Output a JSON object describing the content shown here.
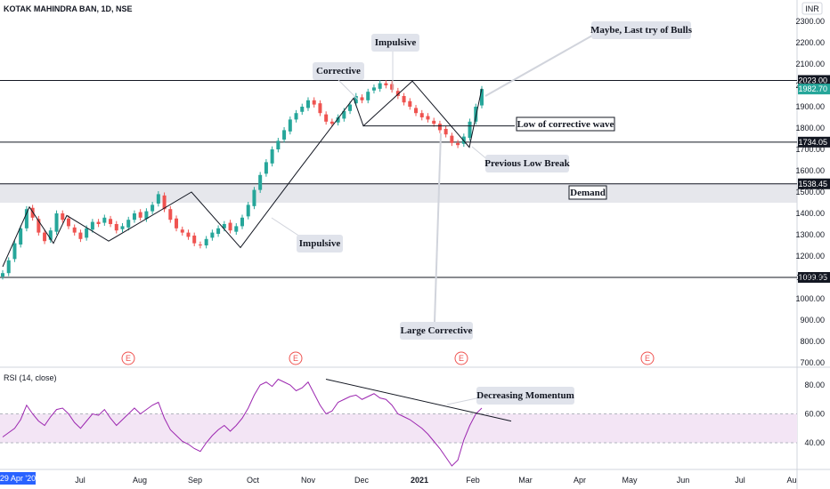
{
  "header": {
    "symbol": "KOTAK MAHINDRA BAN, 1D, NSE",
    "currency": "INR"
  },
  "chart_data": [
    {
      "type": "candlestick",
      "title": "KOTAK MAHINDRA BAN, 1D, NSE",
      "ylim": [
        700,
        2300
      ],
      "y_ticks": [
        "2300.00",
        "2200.00",
        "2100.00",
        "2000.00",
        "1900.00",
        "1800.00",
        "1700.00",
        "1600.00",
        "1500.00",
        "1400.00",
        "1300.00",
        "1200.00",
        "1100.00",
        "1000.00",
        "900.00",
        "800.00",
        "700.00"
      ],
      "x_ticks": [
        "29 Apr '20",
        "Jul",
        "Aug",
        "Sep",
        "Oct",
        "Nov",
        "Dec",
        "2021",
        "Feb",
        "Mar",
        "Apr",
        "May",
        "Jun",
        "Jul",
        "Au"
      ],
      "levels": [
        {
          "value": 2023.0,
          "label": "2023.00"
        },
        {
          "value": 1734.05,
          "label": "1734.05"
        },
        {
          "value": 1538.45,
          "label": "1538.45"
        },
        {
          "value": 1099.95,
          "label": "1099.95"
        }
      ],
      "last_price": {
        "value": 1982.7,
        "label": "1982.70",
        "color": "#26a69a"
      },
      "demand_zone": [
        1450,
        1538.45
      ],
      "up_color": "#26a69a",
      "down_color": "#ef5350",
      "wave_path": [
        1150,
        1430,
        1260,
        1390,
        1270,
        1500,
        1240,
        1590,
        1940,
        1810,
        2020,
        1710,
        1985
      ],
      "close_path": [
        1120,
        1180,
        1260,
        1330,
        1420,
        1380,
        1310,
        1270,
        1320,
        1400,
        1370,
        1340,
        1310,
        1280,
        1330,
        1360,
        1350,
        1380,
        1350,
        1320,
        1340,
        1370,
        1400,
        1380,
        1410,
        1440,
        1490,
        1420,
        1370,
        1330,
        1310,
        1290,
        1260,
        1250,
        1280,
        1310,
        1330,
        1350,
        1320,
        1340,
        1380,
        1440,
        1510,
        1580,
        1640,
        1700,
        1740,
        1790,
        1840,
        1870,
        1900,
        1930,
        1910,
        1870,
        1830,
        1820,
        1850,
        1880,
        1910,
        1950,
        1930,
        1970,
        1990,
        2010,
        2000,
        1980,
        1950,
        1920,
        1900,
        1870,
        1850,
        1840,
        1820,
        1790,
        1770,
        1730,
        1720,
        1760,
        1830,
        1900,
        1982.7
      ],
      "annotations": [
        "Corrective",
        "Impulsive",
        "Maybe, Last try of Bulls",
        "Low of corrective wave",
        "Previous Low Break",
        "Demand",
        "Impulsive",
        "Large Corrective"
      ],
      "earnings_markers": [
        "E",
        "E",
        "E",
        "E"
      ]
    },
    {
      "type": "line",
      "title": "RSI (14, close)",
      "ylim": [
        20,
        90
      ],
      "y_ticks": [
        "80.00",
        "60.00",
        "40.00"
      ],
      "band": [
        40,
        60
      ],
      "line_color": "#9c27b0",
      "values": [
        44,
        47,
        50,
        56,
        66,
        60,
        55,
        52,
        58,
        63,
        64,
        60,
        54,
        50,
        55,
        60,
        59,
        63,
        57,
        52,
        56,
        60,
        64,
        60,
        63,
        66,
        68,
        57,
        49,
        45,
        41,
        39,
        36,
        34,
        40,
        45,
        49,
        52,
        48,
        52,
        57,
        64,
        73,
        80,
        82,
        79,
        84,
        82,
        80,
        76,
        78,
        82,
        74,
        66,
        60,
        62,
        68,
        70,
        72,
        73,
        70,
        72,
        74,
        71,
        70,
        66,
        60,
        58,
        56,
        53,
        50,
        46,
        41,
        36,
        30,
        24,
        28,
        42,
        52,
        60,
        64
      ],
      "annotation": "Decreasing Momentum"
    }
  ]
}
